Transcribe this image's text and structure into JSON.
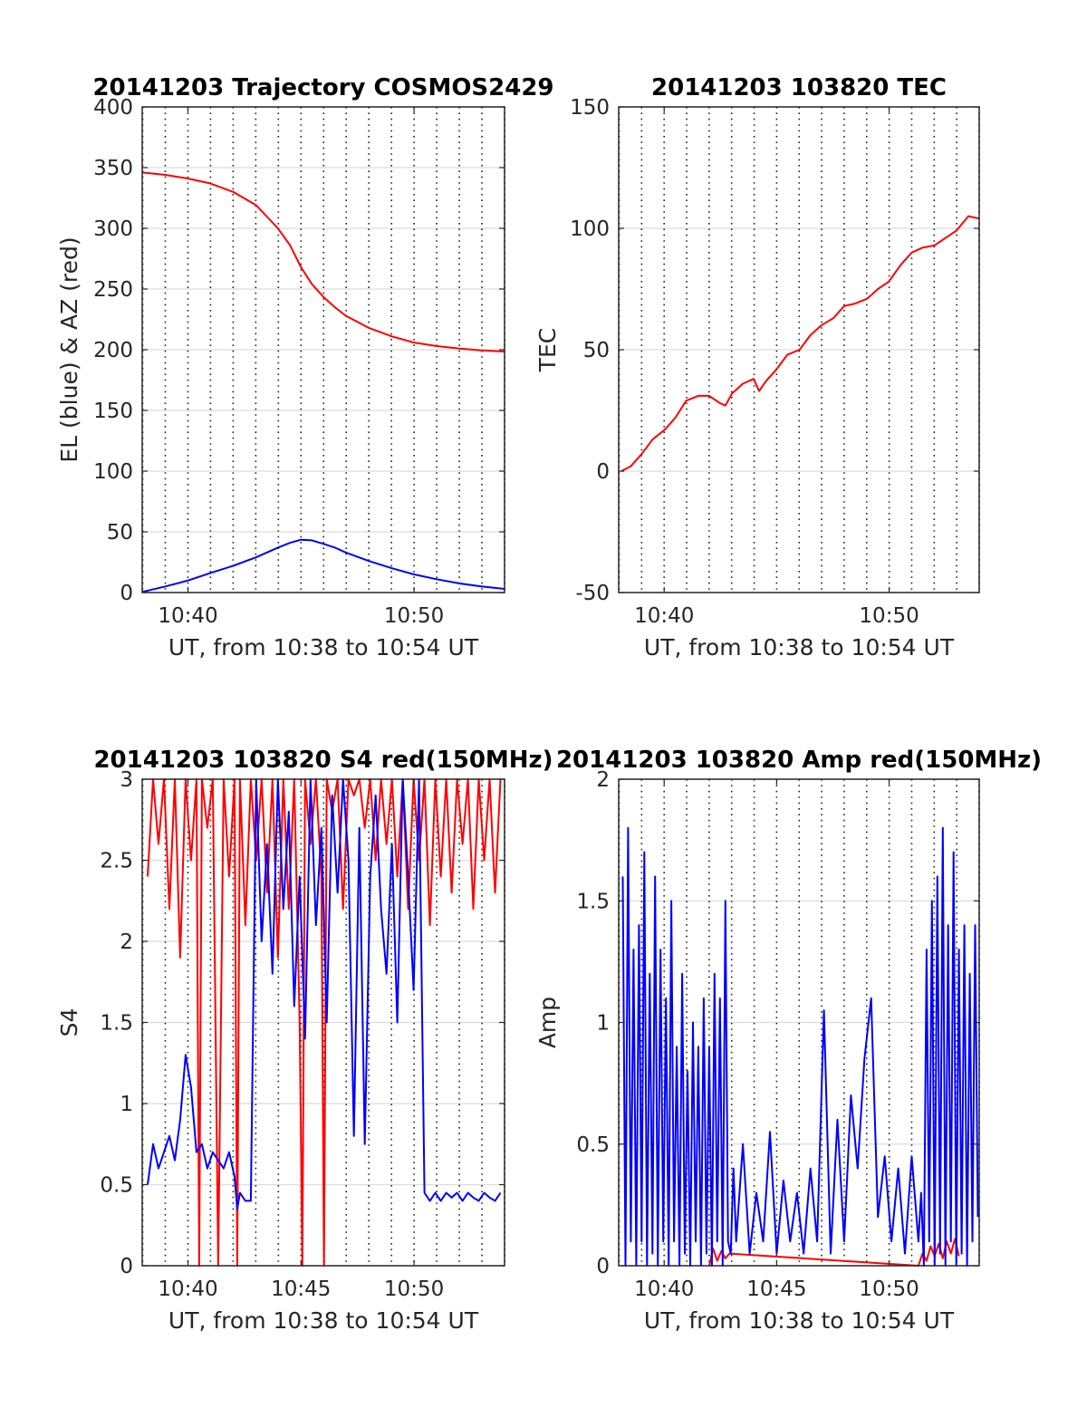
{
  "chart_data": [
    {
      "type": "line",
      "title": "20141203 Trajectory COSMOS2429",
      "xlabel": "UT, from 10:38 to 10:54 UT",
      "ylabel": "EL (blue) & AZ (red)",
      "xlim": [
        10.633,
        10.9
      ],
      "ylim": [
        0,
        400
      ],
      "yticks": [
        0,
        50,
        100,
        150,
        200,
        250,
        300,
        350,
        400
      ],
      "xtick_values": [
        10.6667,
        10.8333
      ],
      "xtick_labels": [
        "10:40",
        "10:50"
      ],
      "minor_grid_step_minutes": 1,
      "grid": true,
      "series": [
        {
          "color": "#ff0000",
          "x": [
            10.633,
            10.65,
            10.667,
            10.683,
            10.7,
            10.717,
            10.733,
            10.742,
            10.75,
            10.758,
            10.767,
            10.775,
            10.783,
            10.8,
            10.817,
            10.833,
            10.85,
            10.867,
            10.883,
            10.9
          ],
          "y": [
            346,
            344,
            341,
            337,
            330,
            319,
            300,
            286,
            268,
            254,
            243,
            235,
            228,
            218,
            211,
            206,
            203,
            201,
            199.5,
            198.5
          ]
        },
        {
          "color": "#0000ff",
          "x": [
            10.633,
            10.65,
            10.667,
            10.683,
            10.7,
            10.717,
            10.733,
            10.742,
            10.75,
            10.758,
            10.767,
            10.775,
            10.783,
            10.8,
            10.817,
            10.833,
            10.85,
            10.867,
            10.883,
            10.9
          ],
          "y": [
            0.5,
            5,
            10,
            16,
            22,
            29,
            37,
            41,
            43.5,
            43,
            40,
            37,
            33,
            26,
            20,
            15,
            11,
            7.5,
            5,
            3
          ]
        }
      ]
    },
    {
      "type": "line",
      "title": "20141203 103820 TEC",
      "xlabel": "UT, from 10:38 to 10:54 UT",
      "ylabel": "TEC",
      "xlim": [
        10.633,
        10.9
      ],
      "ylim": [
        -50,
        150
      ],
      "yticks": [
        -50,
        0,
        50,
        100,
        150
      ],
      "xtick_values": [
        10.6667,
        10.8333
      ],
      "xtick_labels": [
        "10:40",
        "10:50"
      ],
      "minor_grid_step_minutes": 1,
      "grid": true,
      "series": [
        {
          "color": "#ff0000",
          "x": [
            10.635,
            10.642,
            10.65,
            10.658,
            10.667,
            10.675,
            10.683,
            10.692,
            10.7,
            10.708,
            10.712,
            10.717,
            10.725,
            10.733,
            10.737,
            10.742,
            10.75,
            10.758,
            10.767,
            10.775,
            10.783,
            10.792,
            10.8,
            10.808,
            10.817,
            10.825,
            10.833,
            10.842,
            10.85,
            10.858,
            10.867,
            10.875,
            10.883,
            10.892,
            10.9
          ],
          "y": [
            0,
            2,
            7,
            13,
            17,
            22,
            29,
            31,
            31,
            28,
            27,
            32,
            36,
            38,
            33,
            37,
            42,
            48,
            50,
            56,
            60,
            63,
            68,
            69,
            71,
            75,
            78,
            85,
            90,
            92,
            93,
            96,
            99,
            105,
            104
          ]
        }
      ]
    },
    {
      "type": "line",
      "title": "20141203 103820 S4 red(150MHz)",
      "xlabel": "UT, from 10:38 to 10:54 UT",
      "ylabel": "S4",
      "xlim": [
        10.633,
        10.9
      ],
      "ylim": [
        0,
        3
      ],
      "yticks": [
        0,
        0.5,
        1,
        1.5,
        2,
        2.5,
        3
      ],
      "xtick_values": [
        10.6667,
        10.75,
        10.8333
      ],
      "xtick_labels": [
        "10:40",
        "10:45",
        "10:50"
      ],
      "minor_grid_step_minutes": 1,
      "grid": true,
      "series": [
        {
          "color": "#ff0000",
          "x": [
            10.637,
            10.641,
            10.645,
            10.649,
            10.653,
            10.657,
            10.661,
            10.665,
            10.669,
            10.673,
            10.675,
            10.677,
            10.681,
            10.685,
            10.689,
            10.693,
            10.697,
            10.701,
            10.703,
            10.705,
            10.709,
            10.713,
            10.717,
            10.721,
            10.725,
            10.729,
            10.733,
            10.737,
            10.741,
            10.745,
            10.749,
            10.751,
            10.753,
            10.757,
            10.761,
            10.765,
            10.767,
            10.769,
            10.773,
            10.777,
            10.781,
            10.785,
            10.789,
            10.793,
            10.797,
            10.801,
            10.805,
            10.809,
            10.813,
            10.817,
            10.821,
            10.825,
            10.829,
            10.833,
            10.837,
            10.841,
            10.845,
            10.849,
            10.853,
            10.857,
            10.861,
            10.865,
            10.869,
            10.873,
            10.877,
            10.881,
            10.885,
            10.889,
            10.893,
            10.897
          ],
          "y": [
            2.4,
            3,
            2.6,
            3,
            2.2,
            3,
            1.9,
            3,
            2.5,
            3,
            0,
            3,
            2.7,
            3,
            0,
            3,
            2.4,
            3,
            0,
            3,
            2.1,
            3,
            2.5,
            3,
            2.3,
            3,
            1.9,
            3,
            2.2,
            3,
            1.5,
            0,
            3,
            2.6,
            3,
            2.4,
            0,
            3,
            2.8,
            3,
            2.2,
            3,
            2.9,
            3,
            2.7,
            3,
            2.5,
            3,
            2.6,
            3,
            2.4,
            3,
            2.2,
            3,
            2.5,
            3,
            2.1,
            3,
            2.4,
            3,
            2.3,
            3,
            2.6,
            3,
            2.2,
            3,
            2.5,
            3,
            2.3,
            3
          ]
        },
        {
          "color": "#0000ff",
          "x": [
            10.637,
            10.641,
            10.645,
            10.649,
            10.653,
            10.657,
            10.661,
            10.665,
            10.669,
            10.673,
            10.677,
            10.681,
            10.685,
            10.689,
            10.693,
            10.697,
            10.701,
            10.703,
            10.705,
            10.709,
            10.713,
            10.717,
            10.721,
            10.725,
            10.729,
            10.733,
            10.737,
            10.741,
            10.745,
            10.749,
            10.753,
            10.757,
            10.761,
            10.765,
            10.769,
            10.773,
            10.777,
            10.781,
            10.785,
            10.789,
            10.793,
            10.797,
            10.801,
            10.805,
            10.809,
            10.813,
            10.817,
            10.821,
            10.825,
            10.829,
            10.833,
            10.837,
            10.841,
            10.845,
            10.849,
            10.853,
            10.857,
            10.861,
            10.865,
            10.869,
            10.873,
            10.877,
            10.881,
            10.885,
            10.889,
            10.893,
            10.897
          ],
          "y": [
            0.5,
            0.75,
            0.6,
            0.7,
            0.8,
            0.65,
            0.9,
            1.3,
            1.1,
            0.7,
            0.75,
            0.6,
            0.7,
            0.65,
            0.6,
            0.7,
            0.55,
            0.35,
            0.45,
            0.4,
            0.4,
            3,
            2,
            2.6,
            1.8,
            3,
            2.2,
            2.8,
            1.6,
            2.4,
            1.4,
            3,
            2.1,
            2.7,
            1.5,
            2.9,
            2.3,
            3,
            2.5,
            0.8,
            2.7,
            0.75,
            2.4,
            2.9,
            2.2,
            1.8,
            2.6,
            1.5,
            3,
            2.4,
            1.7,
            3,
            0.45,
            0.4,
            0.45,
            0.4,
            0.45,
            0.42,
            0.45,
            0.4,
            0.45,
            0.42,
            0.4,
            0.45,
            0.42,
            0.4,
            0.45
          ]
        }
      ]
    },
    {
      "type": "line",
      "title": "20141203 103820 Amp red(150MHz)",
      "xlabel": "UT, from 10:38 to 10:54 UT",
      "ylabel": "Amp",
      "xlim": [
        10.633,
        10.9
      ],
      "ylim": [
        0,
        2
      ],
      "yticks": [
        0,
        0.5,
        1,
        1.5,
        2
      ],
      "xtick_values": [
        10.6667,
        10.75,
        10.8333
      ],
      "xtick_labels": [
        "10:40",
        "10:45",
        "10:50"
      ],
      "minor_grid_step_minutes": 1,
      "grid": true,
      "series": [
        {
          "color": "#ff0000",
          "x": [
            10.7,
            10.703,
            10.706,
            10.709,
            10.712,
            10.715,
            10.855,
            10.858,
            10.861,
            10.864,
            10.867,
            10.87,
            10.873,
            10.876,
            10.879,
            10.882,
            10.885
          ],
          "y": [
            0,
            0.07,
            0.02,
            0.06,
            0.03,
            0.05,
            0,
            0.05,
            0.02,
            0.08,
            0.04,
            0.09,
            0.03,
            0.1,
            0.05,
            0.11,
            0.04
          ]
        },
        {
          "color": "#0000ff",
          "x": [
            10.636,
            10.638,
            10.64,
            10.642,
            10.644,
            10.646,
            10.648,
            10.65,
            10.652,
            10.654,
            10.656,
            10.658,
            10.66,
            10.662,
            10.664,
            10.666,
            10.668,
            10.67,
            10.672,
            10.674,
            10.676,
            10.678,
            10.68,
            10.682,
            10.684,
            10.686,
            10.688,
            10.69,
            10.692,
            10.694,
            10.696,
            10.698,
            10.7,
            10.702,
            10.704,
            10.706,
            10.708,
            10.71,
            10.712,
            10.714,
            10.716,
            10.718,
            10.72,
            10.725,
            10.73,
            10.735,
            10.74,
            10.745,
            10.75,
            10.755,
            10.76,
            10.765,
            10.77,
            10.775,
            10.78,
            10.785,
            10.79,
            10.795,
            10.8,
            10.805,
            10.81,
            10.815,
            10.82,
            10.825,
            10.83,
            10.835,
            10.84,
            10.845,
            10.85,
            10.855,
            10.857,
            10.859,
            10.861,
            10.863,
            10.865,
            10.867,
            10.869,
            10.871,
            10.873,
            10.875,
            10.877,
            10.879,
            10.881,
            10.883,
            10.885,
            10.887,
            10.889,
            10.891,
            10.893,
            10.895,
            10.897,
            10.899
          ],
          "y": [
            1.6,
            0,
            1.8,
            0.1,
            1.3,
            0,
            1.4,
            0.1,
            1.7,
            0,
            1.2,
            0.05,
            1.6,
            0,
            1.3,
            0.1,
            1.1,
            0,
            1.5,
            0.1,
            0.9,
            0,
            1.2,
            0.05,
            0.8,
            0,
            1.0,
            0.1,
            0.9,
            0,
            1.1,
            0.05,
            0.9,
            0,
            1.2,
            0.1,
            1.1,
            0,
            1.5,
            0.1,
            0.05,
            0.4,
            0.1,
            0.5,
            0.05,
            0.3,
            0.1,
            0.55,
            0.05,
            0.35,
            0.1,
            0.3,
            0.05,
            0.4,
            0.1,
            1.05,
            0.05,
            0.6,
            0.1,
            0.7,
            0.4,
            0.85,
            1.1,
            0.2,
            0.45,
            0.1,
            0.4,
            0.05,
            0.45,
            0.1,
            0.3,
            0,
            1.3,
            0.1,
            1.5,
            0,
            1.6,
            0.05,
            1.8,
            0,
            1.4,
            0.1,
            1.7,
            0,
            1.3,
            0.05,
            1.4,
            0,
            1.2,
            0.1,
            1.4,
            0.2
          ]
        }
      ]
    }
  ]
}
